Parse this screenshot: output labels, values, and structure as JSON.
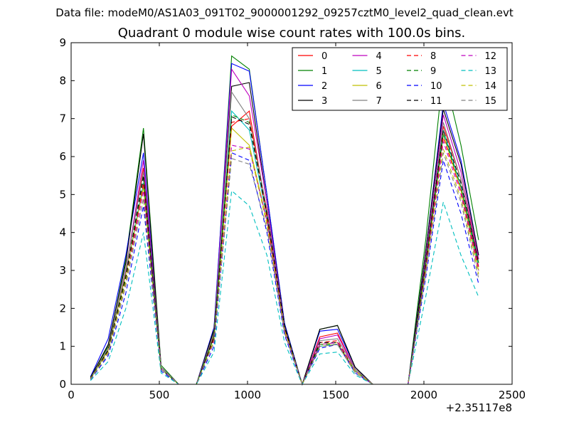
{
  "figure": {
    "suptitle": "Data file: modeM0/AS1A03_091T02_9000001292_09257cztM0_level2_quad_clean.evt"
  },
  "chart_data": {
    "type": "line",
    "title": "Quadrant 0 module wise count rates with 100.0s bins.",
    "xlabel": "",
    "ylabel": "",
    "x_offset_label": "+2.35117e8",
    "xlim": [
      0,
      2500
    ],
    "ylim": [
      0,
      9
    ],
    "xticks": [
      0,
      500,
      1000,
      1500,
      2000,
      2500
    ],
    "yticks": [
      0,
      1,
      2,
      3,
      4,
      5,
      6,
      7,
      8,
      9
    ],
    "grid": false,
    "legend_position": "top-right",
    "legend_columns": 4,
    "x": [
      110,
      210,
      310,
      410,
      510,
      610,
      710,
      810,
      910,
      1010,
      1110,
      1210,
      1310,
      1410,
      1510,
      1610,
      1710,
      1810,
      1910,
      2010,
      2110,
      2210,
      2310
    ],
    "series": [
      {
        "name": "0",
        "color": "#ff0000",
        "dash": "solid",
        "values": [
          0.15,
          0.95,
          3.0,
          5.7,
          0.45,
          0.0,
          0.0,
          1.3,
          6.8,
          7.2,
          4.5,
          1.5,
          0.0,
          1.25,
          1.35,
          0.4,
          0.0,
          0.0,
          0.0,
          3.2,
          6.8,
          5.4,
          3.3
        ]
      },
      {
        "name": "1",
        "color": "#008000",
        "dash": "solid",
        "values": [
          0.2,
          1.0,
          3.3,
          6.75,
          0.5,
          0.0,
          0.0,
          1.4,
          8.65,
          8.3,
          5.0,
          1.6,
          0.0,
          1.45,
          1.55,
          0.45,
          0.0,
          0.0,
          0.0,
          3.8,
          8.25,
          6.3,
          3.8
        ]
      },
      {
        "name": "2",
        "color": "#0000ff",
        "dash": "solid",
        "values": [
          0.2,
          1.2,
          3.4,
          6.1,
          0.45,
          0.0,
          0.0,
          1.5,
          8.45,
          8.25,
          5.0,
          1.6,
          0.0,
          1.4,
          1.45,
          0.45,
          0.0,
          0.0,
          0.0,
          3.5,
          7.4,
          5.9,
          3.4
        ]
      },
      {
        "name": "3",
        "color": "#000000",
        "dash": "solid",
        "values": [
          0.18,
          1.05,
          3.2,
          6.6,
          0.45,
          0.0,
          0.0,
          1.45,
          7.85,
          7.95,
          4.8,
          1.55,
          0.0,
          1.45,
          1.55,
          0.45,
          0.0,
          0.0,
          0.0,
          3.5,
          7.25,
          5.8,
          3.4
        ]
      },
      {
        "name": "4",
        "color": "#bf00bf",
        "dash": "solid",
        "values": [
          0.15,
          0.95,
          3.0,
          5.9,
          0.45,
          0.0,
          0.0,
          1.35,
          8.3,
          7.6,
          4.8,
          1.5,
          0.0,
          1.2,
          1.3,
          0.4,
          0.0,
          0.0,
          0.0,
          3.3,
          7.1,
          5.6,
          3.3
        ]
      },
      {
        "name": "5",
        "color": "#00bfbf",
        "dash": "solid",
        "values": [
          0.14,
          0.9,
          2.9,
          5.3,
          0.4,
          0.0,
          0.0,
          1.25,
          7.2,
          6.7,
          4.4,
          1.45,
          0.0,
          1.0,
          1.05,
          0.35,
          0.0,
          0.0,
          0.0,
          3.1,
          6.7,
          5.2,
          3.1
        ]
      },
      {
        "name": "6",
        "color": "#bfbf00",
        "dash": "solid",
        "values": [
          0.15,
          0.9,
          2.9,
          5.2,
          0.4,
          0.0,
          0.0,
          1.25,
          6.75,
          6.3,
          4.3,
          1.45,
          0.0,
          1.05,
          1.1,
          0.35,
          0.0,
          0.0,
          0.0,
          3.0,
          6.6,
          5.1,
          3.0
        ]
      },
      {
        "name": "7",
        "color": "#808080",
        "dash": "solid",
        "values": [
          0.16,
          0.95,
          3.05,
          5.6,
          0.45,
          0.0,
          0.0,
          1.35,
          7.7,
          7.0,
          4.6,
          1.5,
          0.0,
          1.15,
          1.2,
          0.4,
          0.0,
          0.0,
          0.0,
          3.2,
          6.9,
          5.4,
          3.2
        ]
      },
      {
        "name": "8",
        "color": "#ff0000",
        "dash": "dashed",
        "values": [
          0.14,
          0.85,
          2.7,
          5.3,
          0.4,
          0.0,
          0.0,
          1.2,
          6.9,
          7.0,
          4.4,
          1.45,
          0.0,
          1.1,
          1.15,
          0.35,
          0.0,
          0.0,
          0.0,
          3.1,
          6.5,
          5.1,
          3.1
        ]
      },
      {
        "name": "9",
        "color": "#008000",
        "dash": "dashed",
        "values": [
          0.15,
          0.9,
          2.8,
          5.45,
          0.4,
          0.0,
          0.0,
          1.25,
          7.1,
          6.9,
          4.5,
          1.5,
          0.0,
          1.05,
          1.05,
          0.35,
          0.0,
          0.0,
          0.0,
          3.2,
          6.6,
          5.2,
          3.2
        ]
      },
      {
        "name": "10",
        "color": "#0000ff",
        "dash": "dashed",
        "values": [
          0.12,
          0.75,
          2.4,
          4.7,
          0.35,
          0.0,
          0.0,
          1.0,
          6.1,
          5.9,
          4.0,
          1.3,
          0.0,
          0.95,
          1.05,
          0.3,
          0.0,
          0.0,
          0.0,
          2.8,
          5.9,
          4.5,
          2.65
        ]
      },
      {
        "name": "11",
        "color": "#000000",
        "dash": "dashed",
        "values": [
          0.15,
          0.9,
          2.85,
          5.5,
          0.4,
          0.0,
          0.0,
          1.25,
          7.05,
          6.85,
          4.5,
          1.5,
          0.0,
          1.1,
          1.1,
          0.35,
          0.0,
          0.0,
          0.0,
          3.2,
          6.7,
          5.3,
          3.2
        ]
      },
      {
        "name": "12",
        "color": "#bf00bf",
        "dash": "dashed",
        "values": [
          0.13,
          0.85,
          2.7,
          5.1,
          0.4,
          0.0,
          0.0,
          1.15,
          6.3,
          6.2,
          4.3,
          1.4,
          0.0,
          1.05,
          1.1,
          0.35,
          0.0,
          0.0,
          0.0,
          3.0,
          6.4,
          5.0,
          3.0
        ]
      },
      {
        "name": "13",
        "color": "#00bfbf",
        "dash": "dashed",
        "values": [
          0.1,
          0.6,
          2.0,
          4.0,
          0.3,
          0.0,
          0.0,
          0.85,
          5.1,
          4.7,
          3.4,
          1.1,
          0.0,
          0.8,
          0.85,
          0.25,
          0.0,
          0.0,
          0.0,
          2.3,
          4.8,
          3.4,
          2.3
        ]
      },
      {
        "name": "14",
        "color": "#bfbf00",
        "dash": "dashed",
        "values": [
          0.14,
          0.85,
          2.7,
          4.9,
          0.4,
          0.0,
          0.0,
          1.15,
          6.15,
          6.25,
          4.2,
          1.4,
          0.0,
          1.0,
          1.05,
          0.35,
          0.0,
          0.0,
          0.0,
          2.95,
          6.2,
          4.9,
          2.9
        ]
      },
      {
        "name": "15",
        "color": "#808080",
        "dash": "dashed",
        "values": [
          0.13,
          0.8,
          2.6,
          4.9,
          0.4,
          0.0,
          0.0,
          1.1,
          5.95,
          5.8,
          4.1,
          1.35,
          0.0,
          1.0,
          1.05,
          0.3,
          0.0,
          0.0,
          0.0,
          2.9,
          6.1,
          4.8,
          2.8
        ]
      }
    ]
  }
}
